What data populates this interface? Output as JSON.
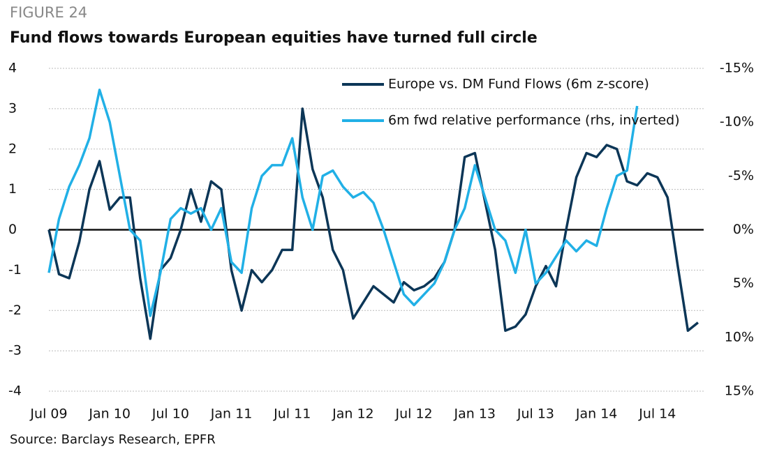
{
  "chart_data": {
    "type": "line",
    "figure_label": "FIGURE 24",
    "title": "Fund flows towards European equities have turned full circle",
    "source": "Source: Barclays Research, EPFR",
    "categories": [
      "Jul 09",
      null,
      null,
      null,
      null,
      null,
      "Jan 10",
      null,
      null,
      null,
      null,
      null,
      "Jul 10",
      null,
      null,
      null,
      null,
      null,
      "Jan 11",
      null,
      null,
      null,
      null,
      null,
      "Jul 11",
      null,
      null,
      null,
      null,
      null,
      "Jan 12",
      null,
      null,
      null,
      null,
      null,
      "Jul 12",
      null,
      null,
      null,
      null,
      null,
      "Jan 13",
      null,
      null,
      null,
      null,
      null,
      "Jul 13",
      null,
      null,
      null,
      null,
      null,
      "Jan 14",
      null,
      null,
      null,
      null,
      null,
      "Jul 14",
      null,
      null,
      null,
      null
    ],
    "series": [
      {
        "name": "Europe vs. DM Fund Flows (6m z-score)",
        "color": "#0c3657",
        "values": [
          0,
          -1.1,
          -1.2,
          -0.3,
          1.0,
          1.7,
          0.5,
          0.8,
          0.8,
          -1.2,
          -2.7,
          -1.0,
          -0.7,
          0.0,
          1.0,
          0.2,
          1.2,
          1.0,
          -1.0,
          -2.0,
          -1.0,
          -1.3,
          -1.0,
          -0.5,
          -0.5,
          3.0,
          1.5,
          0.8,
          -0.5,
          -1.0,
          -2.2,
          -1.8,
          -1.4,
          -1.6,
          -1.8,
          -1.3,
          -1.5,
          -1.4,
          -1.2,
          -0.8,
          0.0,
          1.8,
          1.9,
          0.7,
          -0.5,
          -2.5,
          -2.4,
          -2.1,
          -1.4,
          -0.9,
          -1.4,
          0.0,
          1.3,
          1.9,
          1.8,
          2.1,
          2.0,
          1.2,
          1.1,
          1.4,
          1.3,
          0.8,
          -0.9,
          -2.5,
          -2.3
        ]
      },
      {
        "name": "6m fwd relative performance (rhs, inverted)",
        "color": "#21b0e6",
        "axis": "y2",
        "values": [
          4,
          -1,
          -4,
          -6,
          -8.5,
          -13,
          -10,
          -5,
          0,
          1,
          8,
          4,
          -1,
          -2,
          -1.5,
          -2,
          0,
          -2,
          3,
          4,
          -2,
          -5,
          -6,
          -6,
          -8.5,
          -3,
          0,
          -5,
          -5.5,
          -4,
          -3,
          -3.5,
          -2.5,
          0,
          3,
          6,
          7,
          6,
          5,
          3,
          0,
          -2,
          -6,
          -3,
          0,
          1,
          4,
          0,
          5,
          4,
          2.5,
          1,
          2,
          1,
          1.5,
          -2,
          -5,
          -5.5,
          -11.5,
          null,
          null,
          null,
          null,
          null,
          null
        ]
      }
    ],
    "ylim": [
      -4,
      4
    ],
    "yticks": [
      -4,
      -3,
      -2,
      -1,
      0,
      1,
      2,
      3,
      4
    ],
    "y2lim": [
      15,
      -15
    ],
    "y2ticks": [
      {
        "value": 15,
        "label": "15%"
      },
      {
        "value": 10,
        "label": "10%"
      },
      {
        "value": 5,
        "label": "5%"
      },
      {
        "value": 0,
        "label": "0%"
      },
      {
        "value": -5,
        "label": "-5%"
      },
      {
        "value": -10,
        "label": "-10%"
      },
      {
        "value": -15,
        "label": "-15%"
      }
    ],
    "grid": true,
    "legend": "upper right"
  }
}
